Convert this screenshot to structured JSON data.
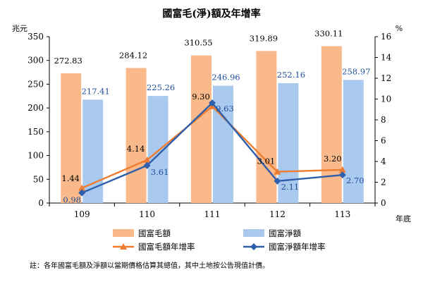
{
  "chart_data": {
    "type": "bar",
    "title": "國富毛(淨)額及年增率",
    "categories": [
      "109",
      "110",
      "111",
      "112",
      "113"
    ],
    "x_unit": "年底",
    "y_left_unit": "兆元",
    "y_right_unit": "%",
    "ylim_left": [
      0,
      350
    ],
    "yticks_left": [
      0,
      50,
      100,
      150,
      200,
      250,
      300,
      350
    ],
    "ylim_right": [
      0,
      16
    ],
    "yticks_right": [
      0,
      2,
      4,
      6,
      8,
      10,
      12,
      14,
      16
    ],
    "grid": false,
    "legend_position": "bottom",
    "series": [
      {
        "name": "國富毛額",
        "kind": "bar",
        "axis": "left",
        "color": "#F9B98A",
        "values": [
          272.83,
          284.12,
          310.55,
          319.89,
          330.11
        ],
        "labels": [
          "272.83",
          "284.12",
          "310.55",
          "319.89",
          "330.11"
        ],
        "label_color": "#000000"
      },
      {
        "name": "國富淨額",
        "kind": "bar",
        "axis": "left",
        "color": "#A9C9EE",
        "values": [
          217.41,
          225.26,
          246.96,
          252.16,
          258.97
        ],
        "labels": [
          "217.41",
          "225.26",
          "246.96",
          "252.16",
          "258.97"
        ],
        "label_color": "#1F4E9A"
      },
      {
        "name": "國富毛額年增率",
        "kind": "line",
        "axis": "right",
        "color": "#EE7D31",
        "marker": "triangle",
        "values": [
          1.44,
          4.14,
          9.3,
          3.01,
          3.2
        ],
        "labels": [
          "1.44",
          "4.14",
          "9.30",
          "3.01",
          "3.20"
        ],
        "label_color": "#000000"
      },
      {
        "name": "國富淨額年增率",
        "kind": "line",
        "axis": "right",
        "color": "#2E5FAC",
        "marker": "diamond",
        "values": [
          0.98,
          3.61,
          9.63,
          2.11,
          2.7
        ],
        "labels": [
          "0.98",
          "3.61",
          "9.63",
          "2.11",
          "2.70"
        ],
        "label_color": "#1F4E9A"
      }
    ]
  },
  "footnote": "註：各年國富毛額及淨額以當期價格估算其總值，其中土地按公告現值計價。"
}
